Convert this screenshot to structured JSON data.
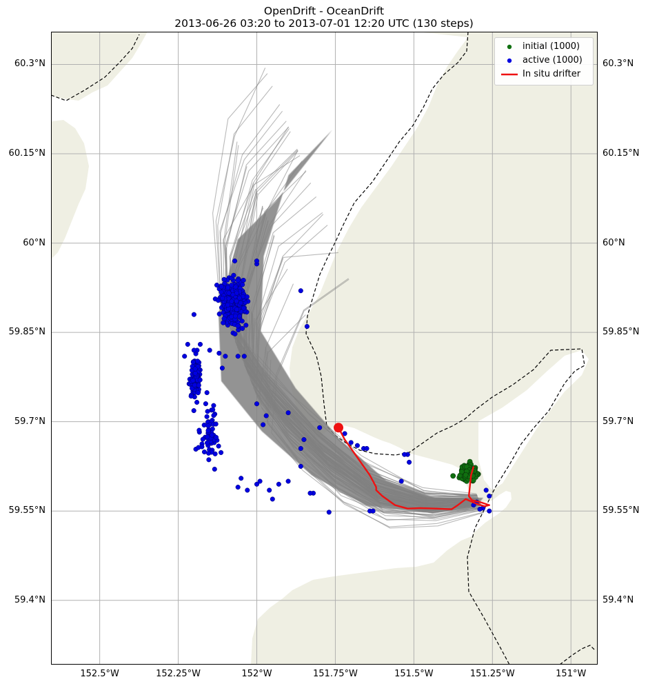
{
  "title": {
    "line1": "OpenDrift - OceanDrift",
    "line2": "2013-06-26 03:20 to 2013-07-01 12:20 UTC (130 steps)"
  },
  "map": {
    "lon_range": [
      -152.655,
      -150.915
    ],
    "lat_range": [
      59.292,
      60.355
    ],
    "lon_ticks": [
      {
        "lon": -152.5,
        "label": "152.5°W"
      },
      {
        "lon": -152.25,
        "label": "152.25°W"
      },
      {
        "lon": -152.0,
        "label": "152°W"
      },
      {
        "lon": -151.75,
        "label": "151.75°W"
      },
      {
        "lon": -151.5,
        "label": "151.5°W"
      },
      {
        "lon": -151.25,
        "label": "151.25°W"
      },
      {
        "lon": -151.0,
        "label": "151°W"
      }
    ],
    "lat_ticks": [
      {
        "lat": 60.3,
        "label": "60.3°N"
      },
      {
        "lat": 60.15,
        "label": "60.15°N"
      },
      {
        "lat": 60.0,
        "label": "60°N"
      },
      {
        "lat": 59.85,
        "label": "59.85°N"
      },
      {
        "lat": 59.7,
        "label": "59.7°N"
      },
      {
        "lat": 59.55,
        "label": "59.55°N"
      },
      {
        "lat": 59.4,
        "label": "59.4°N"
      }
    ],
    "land_color": "#efefe3",
    "grid_color": "#b0b0b0",
    "boundary_color": "#000000"
  },
  "legend": {
    "placement": "top-right",
    "items": [
      {
        "label": "initial (1000)",
        "color": "#107010",
        "symbol": "dot"
      },
      {
        "label": "active (1000)",
        "color": "#0000e0",
        "symbol": "dot"
      },
      {
        "label": "In situ drifter",
        "color": "#ee1111",
        "symbol": "line"
      }
    ]
  },
  "trajectories": {
    "color": "#808080",
    "count": 1000
  },
  "drifter_track": {
    "color": "#ee1111",
    "points": [
      [
        -151.31,
        59.625
      ],
      [
        -151.318,
        59.61
      ],
      [
        -151.322,
        59.59
      ],
      [
        -151.325,
        59.575
      ],
      [
        -151.315,
        59.568
      ],
      [
        -151.29,
        59.565
      ],
      [
        -151.26,
        59.56
      ],
      [
        -151.275,
        59.558
      ],
      [
        -151.3,
        59.562
      ],
      [
        -151.335,
        59.57
      ],
      [
        -151.36,
        59.56
      ],
      [
        -151.38,
        59.553
      ],
      [
        -151.43,
        59.554
      ],
      [
        -151.48,
        59.555
      ],
      [
        -151.52,
        59.554
      ],
      [
        -151.56,
        59.56
      ],
      [
        -151.6,
        59.575
      ],
      [
        -151.62,
        59.585
      ],
      [
        -151.62,
        59.59
      ],
      [
        -151.64,
        59.61
      ],
      [
        -151.68,
        59.64
      ],
      [
        -151.72,
        59.67
      ],
      [
        -151.74,
        59.69
      ]
    ],
    "end_marker": [
      -151.74,
      59.69
    ]
  },
  "initial_seed": {
    "center": [
      -151.325,
      59.614
    ],
    "spread": [
      0.025,
      0.012
    ]
  },
  "active_clusters": [
    {
      "center": [
        -152.075,
        59.9
      ],
      "spread": [
        0.04,
        0.035
      ],
      "count": 360
    },
    {
      "center": [
        -152.195,
        59.775
      ],
      "spread": [
        0.013,
        0.03
      ],
      "count": 120
    },
    {
      "center": [
        -152.15,
        59.68
      ],
      "spread": [
        0.03,
        0.05
      ],
      "count": 60
    }
  ],
  "active_scattered": [
    [
      -152.0,
      59.965
    ],
    [
      -152.0,
      59.97
    ],
    [
      -152.07,
      59.97
    ],
    [
      -151.86,
      59.92
    ],
    [
      -151.84,
      59.86
    ],
    [
      -152.2,
      59.88
    ],
    [
      -152.0,
      59.73
    ],
    [
      -151.9,
      59.715
    ],
    [
      -151.97,
      59.71
    ],
    [
      -151.98,
      59.695
    ],
    [
      -151.8,
      59.69
    ],
    [
      -151.85,
      59.67
    ],
    [
      -151.86,
      59.655
    ],
    [
      -151.86,
      59.625
    ],
    [
      -151.9,
      59.6
    ],
    [
      -151.93,
      59.595
    ],
    [
      -151.96,
      59.585
    ],
    [
      -151.99,
      59.6
    ],
    [
      -152.0,
      59.595
    ],
    [
      -151.95,
      59.57
    ],
    [
      -152.03,
      59.585
    ],
    [
      -152.06,
      59.59
    ],
    [
      -152.05,
      59.605
    ],
    [
      -151.82,
      59.58
    ],
    [
      -151.83,
      59.58
    ],
    [
      -151.77,
      59.548
    ],
    [
      -151.64,
      59.55
    ],
    [
      -151.63,
      59.55
    ],
    [
      -151.54,
      59.6
    ],
    [
      -151.52,
      59.645
    ],
    [
      -151.53,
      59.645
    ],
    [
      -151.515,
      59.632
    ],
    [
      -151.72,
      59.68
    ],
    [
      -151.7,
      59.665
    ],
    [
      -151.68,
      59.66
    ],
    [
      -151.66,
      59.655
    ],
    [
      -151.65,
      59.655
    ],
    [
      -151.27,
      59.585
    ],
    [
      -151.26,
      59.575
    ],
    [
      -151.3,
      59.565
    ],
    [
      -151.28,
      59.555
    ],
    [
      -151.31,
      59.56
    ],
    [
      -151.26,
      59.55
    ],
    [
      -151.29,
      59.553
    ],
    [
      -152.22,
      59.83
    ],
    [
      -152.19,
      59.82
    ],
    [
      -152.18,
      59.83
    ],
    [
      -152.15,
      59.82
    ],
    [
      -152.12,
      59.815
    ],
    [
      -152.1,
      59.81
    ],
    [
      -152.04,
      59.81
    ],
    [
      -152.06,
      59.81
    ],
    [
      -152.11,
      59.79
    ],
    [
      -152.2,
      59.82
    ],
    [
      -152.23,
      59.81
    ]
  ]
}
